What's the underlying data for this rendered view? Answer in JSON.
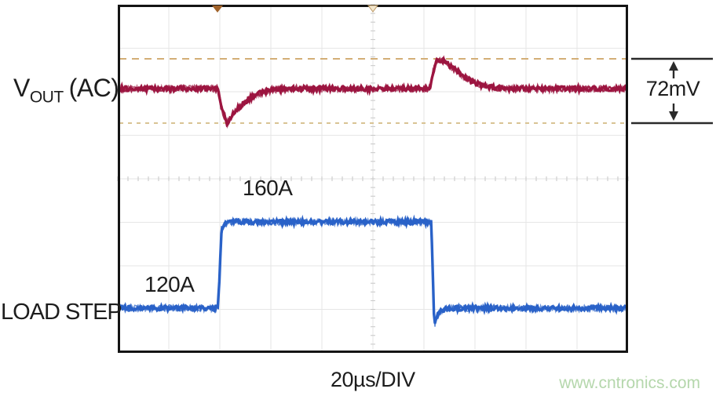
{
  "labels": {
    "vout_v": "V",
    "vout_sub": "OUT",
    "vout_ac": "(AC)",
    "load_step": "LOAD STEP",
    "high_current": "160A",
    "low_current": "120A",
    "timebase": "20µs/DIV",
    "delta_v": "72mV",
    "watermark": "www.cntronics.com"
  },
  "colors": {
    "vout_trace": "#9c1540",
    "load_trace": "#2a62c8",
    "cursor_top": "#d3ae76",
    "cursor_bottom": "#d9c394",
    "grid": "#e6e6e6",
    "axis_tick": "#c6c6c6",
    "border": "#141414",
    "marker_solid": "#a0622a",
    "marker_hollow_fill": "#f2e6cc",
    "marker_hollow_stroke": "#bd9a66",
    "measure": "#2a2a2a",
    "text": "#1d1d1d",
    "watermark": "#b5d7ac"
  },
  "chart_data": {
    "type": "line",
    "title": "Load-step transient response",
    "xlabel": "20µs/DIV",
    "x_unit": "µs",
    "x_range": [
      0,
      200
    ],
    "x_divisions": 10,
    "y_divisions": 8,
    "grid": true,
    "trigger_marker_us": 39,
    "center_marker_us": 100,
    "cursors": {
      "upper_mV": 33,
      "lower_mV": -39,
      "delta_label": "72mV"
    },
    "series": [
      {
        "name": "VOUT (AC)",
        "unit": "mV",
        "baseline_mV": 0,
        "peak_to_peak_mV": 72,
        "keypoints": [
          [
            0,
            0
          ],
          [
            39.3,
            0
          ],
          [
            40.5,
            -20
          ],
          [
            42.8,
            -39
          ],
          [
            44,
            -34
          ],
          [
            46,
            -25
          ],
          [
            49,
            -17
          ],
          [
            52,
            -10
          ],
          [
            55,
            -6
          ],
          [
            58,
            -3
          ],
          [
            62,
            -1
          ],
          [
            70,
            0
          ],
          [
            120,
            0
          ],
          [
            122.5,
            0
          ],
          [
            123.5,
            18
          ],
          [
            125,
            31
          ],
          [
            127,
            32
          ],
          [
            129,
            29
          ],
          [
            131,
            24
          ],
          [
            134,
            17
          ],
          [
            137,
            11
          ],
          [
            140,
            6
          ],
          [
            144,
            3
          ],
          [
            148,
            1
          ],
          [
            155,
            0
          ],
          [
            200,
            0
          ]
        ]
      },
      {
        "name": "LOAD STEP",
        "unit": "A",
        "low_level_A": 120,
        "high_level_A": 160,
        "step_up_us": 40,
        "step_down_us": 124,
        "keypoints": [
          [
            0,
            120
          ],
          [
            39.2,
            120
          ],
          [
            39.8,
            132
          ],
          [
            40.6,
            155
          ],
          [
            41.5,
            159
          ],
          [
            43,
            160
          ],
          [
            122.8,
            160
          ],
          [
            123.4,
            140
          ],
          [
            123.9,
            118
          ],
          [
            124.3,
            113
          ],
          [
            125.5,
            117
          ],
          [
            127,
            119
          ],
          [
            129,
            120
          ],
          [
            200,
            120
          ]
        ]
      }
    ]
  }
}
